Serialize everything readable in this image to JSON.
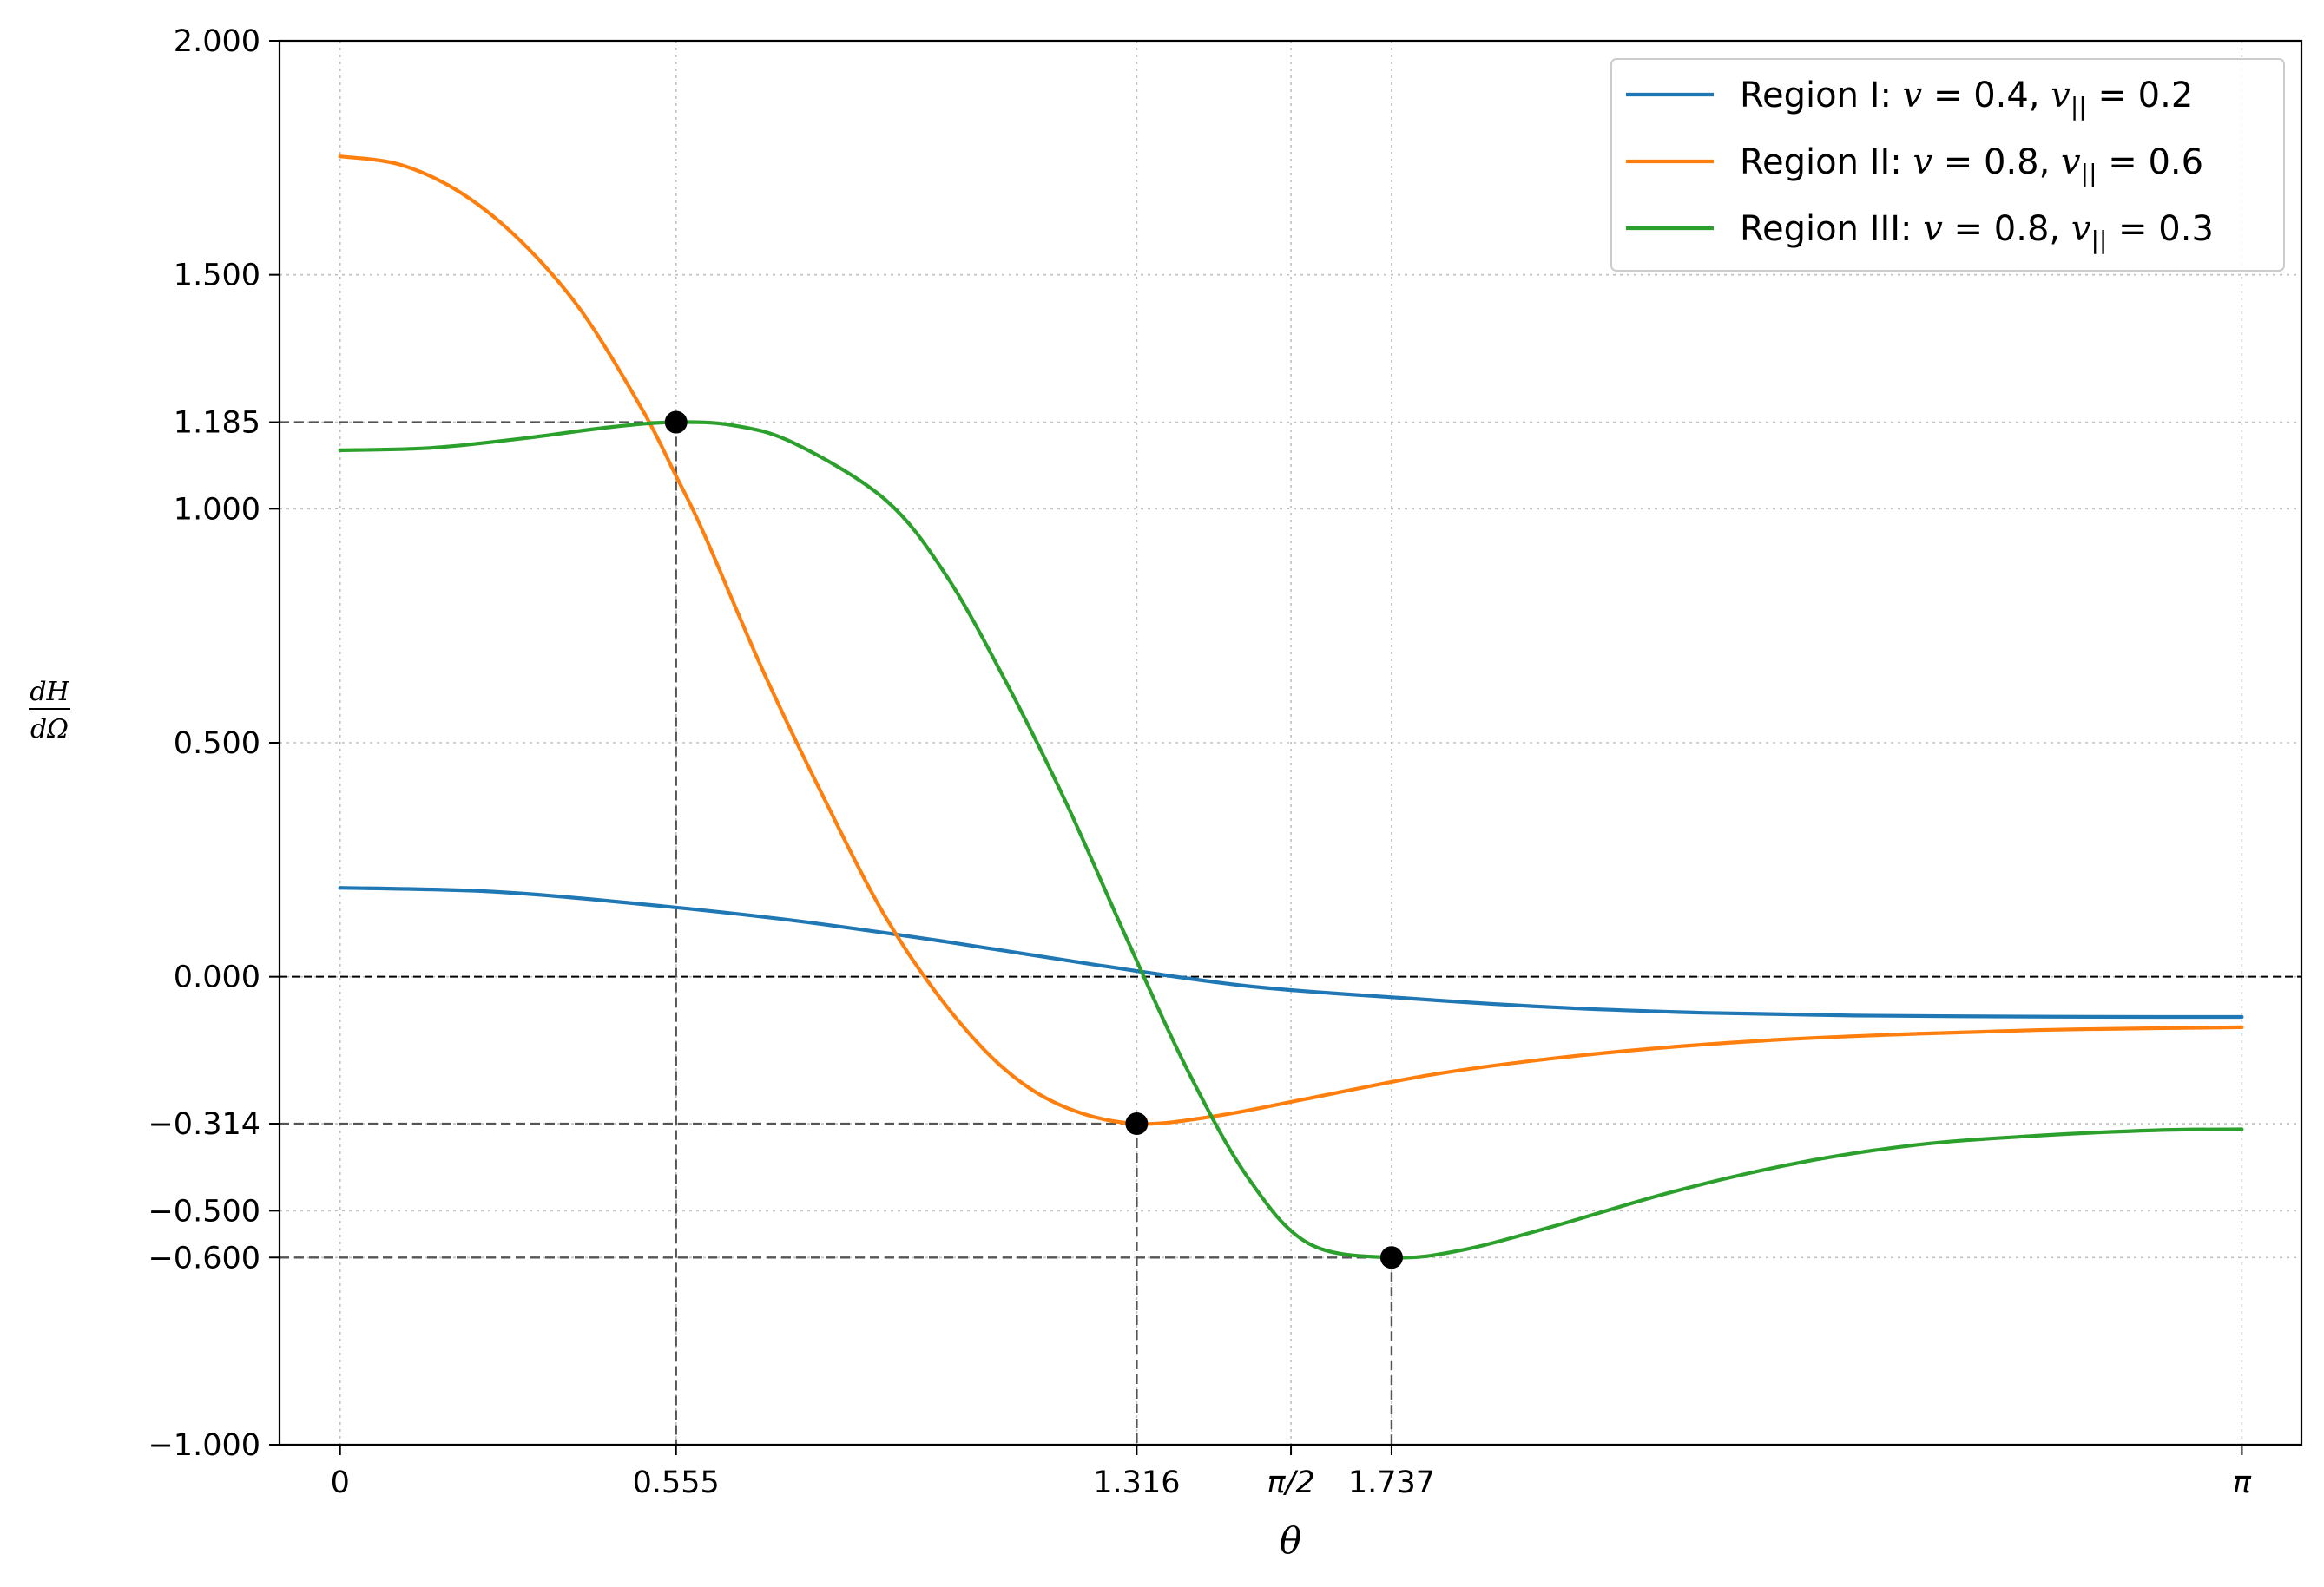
{
  "chart_data": {
    "type": "line",
    "xlabel": "θ",
    "ylabel": {
      "numerator": "dH",
      "denominator": "dΩ"
    },
    "xlim": [
      -0.1,
      3.24
    ],
    "ylim": [
      -1.0,
      2.0
    ],
    "grid": true,
    "legend_position": "top-right",
    "xticks": [
      {
        "value": 0,
        "label": "0"
      },
      {
        "value": 0.555,
        "label": "0.555"
      },
      {
        "value": 1.316,
        "label": "1.316"
      },
      {
        "value": 1.5708,
        "label": "π/2"
      },
      {
        "value": 1.737,
        "label": "1.737"
      },
      {
        "value": 3.1416,
        "label": "π"
      }
    ],
    "yticks": [
      {
        "value": 2.0,
        "label": "2.000"
      },
      {
        "value": 1.5,
        "label": "1.500"
      },
      {
        "value": 1.185,
        "label": "1.185"
      },
      {
        "value": 1.0,
        "label": "1.000"
      },
      {
        "value": 0.5,
        "label": "0.500"
      },
      {
        "value": 0.0,
        "label": "0.000"
      },
      {
        "value": -0.314,
        "label": "−0.314"
      },
      {
        "value": -0.5,
        "label": "−0.500"
      },
      {
        "value": -0.6,
        "label": "−0.600"
      },
      {
        "value": -1.0,
        "label": "−1.000"
      }
    ],
    "zero_line": 0.0,
    "series": [
      {
        "name": "Region I: v = 0.4, v|| = 0.2",
        "color": "#1f77b4",
        "x": [
          0,
          0.25,
          0.5,
          0.75,
          1.0,
          1.25,
          1.5,
          1.75,
          2.0,
          2.25,
          2.5,
          2.75,
          3.0,
          3.1416
        ],
        "y": [
          0.19,
          0.182,
          0.155,
          0.12,
          0.075,
          0.025,
          -0.02,
          -0.045,
          -0.065,
          -0.077,
          -0.083,
          -0.085,
          -0.086,
          -0.086
        ]
      },
      {
        "name": "Region II: v = 0.8, v|| = 0.6",
        "color": "#ff7f0e",
        "x": [
          0,
          0.1,
          0.2,
          0.3,
          0.4,
          0.5,
          0.555,
          0.6,
          0.7,
          0.8,
          0.9,
          1.0,
          1.1,
          1.2,
          1.316,
          1.45,
          1.6,
          1.8,
          2.0,
          2.2,
          2.4,
          2.6,
          2.8,
          3.0,
          3.1416
        ],
        "y": [
          1.753,
          1.735,
          1.675,
          1.57,
          1.42,
          1.21,
          1.07,
          0.95,
          0.65,
          0.38,
          0.13,
          -0.06,
          -0.2,
          -0.28,
          -0.314,
          -0.297,
          -0.26,
          -0.21,
          -0.175,
          -0.15,
          -0.133,
          -0.122,
          -0.114,
          -0.11,
          -0.108
        ]
      },
      {
        "name": "Region III: v = 0.8, v|| = 0.3",
        "color": "#2ca02c",
        "x": [
          0,
          0.15,
          0.3,
          0.45,
          0.555,
          0.65,
          0.75,
          0.9,
          1.0,
          1.1,
          1.2,
          1.3,
          1.4,
          1.5,
          1.6,
          1.737,
          1.85,
          2.0,
          2.2,
          2.4,
          2.6,
          2.8,
          3.0,
          3.1416
        ],
        "y": [
          1.125,
          1.13,
          1.15,
          1.175,
          1.185,
          1.178,
          1.14,
          1.02,
          0.86,
          0.63,
          0.37,
          0.08,
          -0.2,
          -0.43,
          -0.57,
          -0.6,
          -0.585,
          -0.535,
          -0.46,
          -0.4,
          -0.36,
          -0.34,
          -0.328,
          -0.326
        ]
      }
    ],
    "marked_points": [
      {
        "x": 0.555,
        "y": 1.185
      },
      {
        "x": 1.316,
        "y": -0.314
      },
      {
        "x": 1.737,
        "y": -0.6
      }
    ]
  }
}
